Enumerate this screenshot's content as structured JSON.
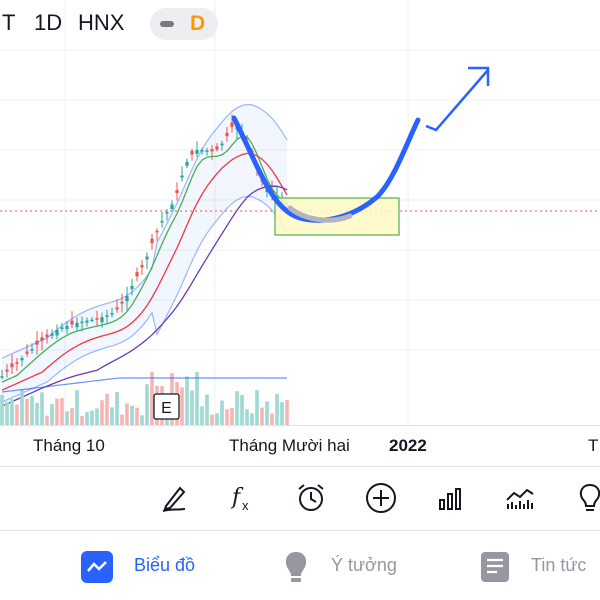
{
  "header": {
    "symbol_partial": "T",
    "interval": "1D",
    "exchange": "HNX",
    "chart_type_letter": "D",
    "chart_type_color": "#ff9800"
  },
  "xaxis": {
    "labels": [
      "Tháng 10",
      "Tháng Mười hai",
      "2022",
      "T"
    ]
  },
  "chart_data": {
    "type": "candlestick",
    "up_color": "#26a69a",
    "down_color": "#ef5350",
    "earnings_marker": "E",
    "ma_colors": [
      "#4caf50",
      "#f23645",
      "#673ab7"
    ],
    "bollinger_color": "#2962ff",
    "projection_color": "#2962ff",
    "zone_color": "#fff9c4"
  },
  "toolbar": {
    "tools": [
      {
        "icon": "drawing-pen-icon"
      },
      {
        "icon": "indicators-fx-icon"
      },
      {
        "icon": "alarm-clock-icon"
      },
      {
        "icon": "add-circle-icon"
      },
      {
        "icon": "bar-chart-icon"
      },
      {
        "icon": "compare-chart-icon"
      },
      {
        "icon": "lightbulb-icon"
      }
    ]
  },
  "nav": {
    "chart_label": "Biểu đồ",
    "ideas_label": "Ý tưởng",
    "news_label": "Tin tức",
    "active_color": "#2962ff",
    "inactive_color": "#9598a1"
  }
}
